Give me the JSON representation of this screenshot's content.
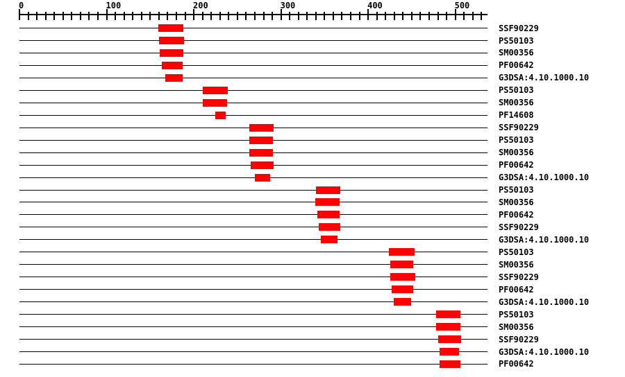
{
  "page": {
    "background": "#ffffff",
    "text_color": "#000000"
  },
  "chart_data": {
    "type": "bar",
    "subtype": "protein-domain-architecture",
    "title": "",
    "xlabel": "",
    "ylabel": "",
    "legend": "none",
    "grid": false,
    "axis": {
      "min": 0,
      "max": 530,
      "minor_step": 10,
      "major_step": 100,
      "tick_labels": [
        "0",
        "100",
        "200",
        "300",
        "400",
        "500"
      ],
      "sequence_length": 537
    },
    "match_color": "#ff0000",
    "line_color": "#000000",
    "rows": [
      {
        "label": "SSF90229",
        "start": 159,
        "end": 188
      },
      {
        "label": "PS50103",
        "start": 160,
        "end": 189
      },
      {
        "label": "SM00356",
        "start": 161,
        "end": 188
      },
      {
        "label": "PF00642",
        "start": 163,
        "end": 187
      },
      {
        "label": "G3DSA:4.10.1000.10",
        "start": 167,
        "end": 187
      },
      {
        "label": "PS50103",
        "start": 210,
        "end": 239
      },
      {
        "label": "SM00356",
        "start": 210,
        "end": 238
      },
      {
        "label": "PF14608",
        "start": 225,
        "end": 237
      },
      {
        "label": "SSF90229",
        "start": 264,
        "end": 292
      },
      {
        "label": "PS50103",
        "start": 264,
        "end": 291
      },
      {
        "label": "SM00356",
        "start": 264,
        "end": 291
      },
      {
        "label": "PF00642",
        "start": 265,
        "end": 292
      },
      {
        "label": "G3DSA:4.10.1000.10",
        "start": 270,
        "end": 288
      },
      {
        "label": "PS50103",
        "start": 340,
        "end": 368
      },
      {
        "label": "SM00356",
        "start": 339,
        "end": 367
      },
      {
        "label": "PF00642",
        "start": 342,
        "end": 367
      },
      {
        "label": "SSF90229",
        "start": 343,
        "end": 368
      },
      {
        "label": "G3DSA:4.10.1000.10",
        "start": 346,
        "end": 365
      },
      {
        "label": "PS50103",
        "start": 424,
        "end": 453
      },
      {
        "label": "SM00356",
        "start": 425,
        "end": 452
      },
      {
        "label": "SSF90229",
        "start": 425,
        "end": 454
      },
      {
        "label": "PF00642",
        "start": 427,
        "end": 452
      },
      {
        "label": "G3DSA:4.10.1000.10",
        "start": 429,
        "end": 449
      },
      {
        "label": "PS50103",
        "start": 478,
        "end": 506
      },
      {
        "label": "SM00356",
        "start": 478,
        "end": 506
      },
      {
        "label": "SSF90229",
        "start": 480,
        "end": 507
      },
      {
        "label": "G3DSA:4.10.1000.10",
        "start": 482,
        "end": 504
      },
      {
        "label": "PF00642",
        "start": 482,
        "end": 506
      }
    ]
  }
}
